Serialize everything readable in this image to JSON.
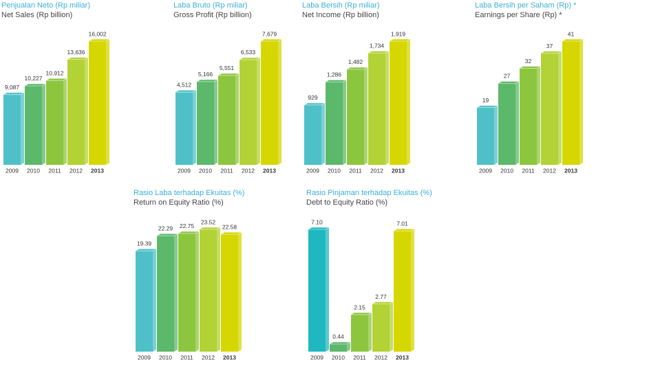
{
  "chart_data": [
    {
      "type": "bar",
      "title": "Penjualan Neto (Rp miliar)",
      "subtitle": "Net Sales (Rp billion)",
      "categories": [
        "2009",
        "2010",
        "2011",
        "2012",
        "2013"
      ],
      "values": [
        9087,
        10227,
        10912,
        13636,
        16002
      ],
      "value_labels": [
        "9,087",
        "10,227",
        "10,912",
        "13,636",
        "16,002"
      ],
      "colors": [
        "#4fc0c8",
        "#5cb86a",
        "#8cc63f",
        "#b2d235",
        "#d6d600"
      ]
    },
    {
      "type": "bar",
      "title": "Laba Bruto (Rp miliar)",
      "subtitle": "Gross Profit (Rp billion)",
      "categories": [
        "2009",
        "2010",
        "2011",
        "2012",
        "2013"
      ],
      "values": [
        4512,
        5166,
        5551,
        6533,
        7679
      ],
      "value_labels": [
        "4,512",
        "5,166",
        "5,551",
        "6,533",
        "7,679"
      ],
      "colors": [
        "#4fc0c8",
        "#5cb86a",
        "#8cc63f",
        "#b2d235",
        "#d6d600"
      ]
    },
    {
      "type": "bar",
      "title": "Laba Bersih (Rp miliar)",
      "subtitle": "Net Income (Rp billion)",
      "categories": [
        "2009",
        "2010",
        "2011",
        "2012",
        "2013"
      ],
      "values": [
        929,
        1286,
        1482,
        1734,
        1919
      ],
      "value_labels": [
        "929",
        "1,286",
        "1,482",
        "1,734",
        "1,919"
      ],
      "colors": [
        "#4fc0c8",
        "#5cb86a",
        "#8cc63f",
        "#b2d235",
        "#d6d600"
      ]
    },
    {
      "type": "bar",
      "title": "Laba Bersih per Saham (Rp) *",
      "subtitle": "Earnings per Share (Rp) *",
      "categories": [
        "2009",
        "2010",
        "2011",
        "2012",
        "2013"
      ],
      "values": [
        19,
        27,
        32,
        37,
        41
      ],
      "value_labels": [
        "19",
        "27",
        "32",
        "37",
        "41"
      ],
      "colors": [
        "#4fc0c8",
        "#5cb86a",
        "#8cc63f",
        "#b2d235",
        "#d6d600"
      ]
    },
    {
      "type": "bar",
      "title": "Rasio Laba terhadap Ekuitas (%)",
      "subtitle": "Return on Equity Ratio (%)",
      "categories": [
        "2009",
        "2010",
        "2011",
        "2012",
        "2013"
      ],
      "values": [
        19.39,
        22.29,
        22.75,
        23.52,
        22.58
      ],
      "value_labels": [
        "19.39",
        "22.29",
        "22.75",
        "23.52",
        "22.58"
      ],
      "colors": [
        "#4fc0c8",
        "#5cb86a",
        "#8cc63f",
        "#b2d235",
        "#d6d600"
      ]
    },
    {
      "type": "bar",
      "title": "Rasio Pinjaman terhadap Ekuitas (%)",
      "subtitle": "Debt to Equity Ratio (%)",
      "categories": [
        "2009",
        "2010",
        "2011",
        "2012",
        "2013"
      ],
      "values": [
        7.1,
        0.44,
        2.15,
        2.77,
        7.01
      ],
      "value_labels": [
        "7.10",
        "0.44",
        "2.15",
        "2.77",
        "7.01"
      ],
      "colors": [
        "#20b8c0",
        "#5cb86a",
        "#8cc63f",
        "#b2d235",
        "#d6d600"
      ]
    }
  ]
}
